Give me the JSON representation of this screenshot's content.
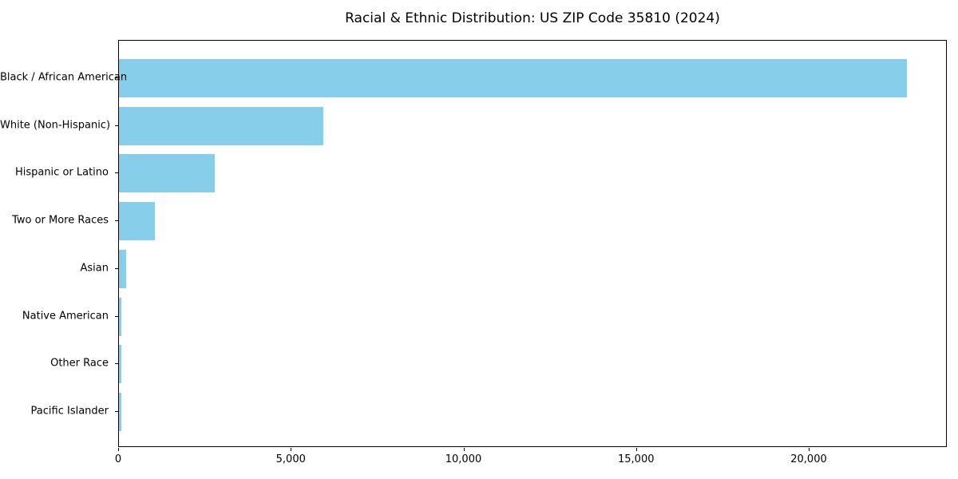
{
  "chart_data": {
    "type": "bar",
    "orientation": "horizontal",
    "title": "Racial & Ethnic Distribution: US ZIP Code 35810 (2024)",
    "categories": [
      "Black / African American",
      "White (Non-Hispanic)",
      "Hispanic or Latino",
      "Two or More Races",
      "Asian",
      "Native American",
      "Other Race",
      "Pacific Islander"
    ],
    "values": [
      22830,
      5910,
      2770,
      1040,
      200,
      80,
      70,
      60
    ],
    "xlabel": "",
    "ylabel": "",
    "xlim": [
      0,
      24000
    ],
    "x_ticks": [
      {
        "value": 0,
        "label": "0"
      },
      {
        "value": 5000,
        "label": "5,000"
      },
      {
        "value": 10000,
        "label": "10,000"
      },
      {
        "value": 15000,
        "label": "15,000"
      },
      {
        "value": 20000,
        "label": "20,000"
      }
    ],
    "bar_color": "#87ceeb",
    "grid": false,
    "legend": "none"
  }
}
